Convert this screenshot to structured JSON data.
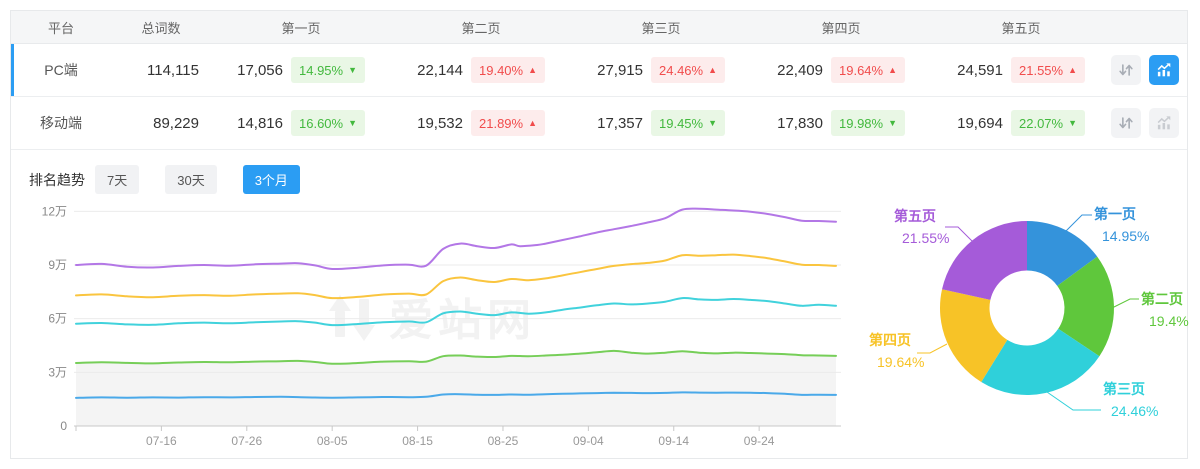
{
  "table": {
    "headers": [
      "平台",
      "总词数",
      "第一页",
      "第二页",
      "第三页",
      "第四页",
      "第五页"
    ],
    "rows": [
      {
        "platform": "PC端",
        "total": "114,115",
        "selected": true,
        "chart_active": true,
        "pages": [
          {
            "count": "17,056",
            "pct": "14.95%",
            "dir": "down"
          },
          {
            "count": "22,144",
            "pct": "19.40%",
            "dir": "up"
          },
          {
            "count": "27,915",
            "pct": "24.46%",
            "dir": "up"
          },
          {
            "count": "22,409",
            "pct": "19.64%",
            "dir": "up"
          },
          {
            "count": "24,591",
            "pct": "21.55%",
            "dir": "up"
          }
        ]
      },
      {
        "platform": "移动端",
        "total": "89,229",
        "selected": false,
        "chart_active": false,
        "pages": [
          {
            "count": "14,816",
            "pct": "16.60%",
            "dir": "down"
          },
          {
            "count": "19,532",
            "pct": "21.89%",
            "dir": "up"
          },
          {
            "count": "17,357",
            "pct": "19.45%",
            "dir": "down"
          },
          {
            "count": "17,830",
            "pct": "19.98%",
            "dir": "down"
          },
          {
            "count": "19,694",
            "pct": "22.07%",
            "dir": "down"
          }
        ]
      }
    ]
  },
  "glyphs": {
    "up": "▲",
    "down": "▼"
  },
  "icons": {
    "sort": "sort-arrows-icon",
    "chart": "trend-chart-icon"
  },
  "trend": {
    "label": "排名趋势",
    "tabs": [
      {
        "label": "7天",
        "active": false
      },
      {
        "label": "30天",
        "active": false
      },
      {
        "label": "3个月",
        "active": true
      }
    ]
  },
  "watermark": "爱站网",
  "colors": {
    "accent_blue": "#2b9df3",
    "badge_up_bg": "#fdecec",
    "badge_up_fg": "#f14c4c",
    "badge_down_bg": "#e9f7e5",
    "badge_down_fg": "#43b93e",
    "grid_line": "#ebebeb",
    "axis_line": "#c8c8c8",
    "area_fill": "#f4f4f4",
    "watermark_fill": "#f2f2f2"
  },
  "chart_data": [
    {
      "type": "line",
      "title": "排名趋势 3个月",
      "x_tick_labels": [
        "07-16",
        "07-26",
        "08-05",
        "08-15",
        "08-25",
        "09-04",
        "09-14",
        "09-24"
      ],
      "x_tick_days": [
        10,
        20,
        30,
        40,
        50,
        60,
        70,
        80
      ],
      "x_range_days": [
        0,
        89
      ],
      "y_tick_labels": [
        "0",
        "3万",
        "6万",
        "9万",
        "12万"
      ],
      "y_tick_values": [
        0,
        3,
        6,
        9,
        12
      ],
      "y_unit": "万",
      "ylim": [
        0,
        13
      ],
      "grid": true,
      "legend": "none",
      "area_series": "第二页",
      "series": [
        {
          "name": "第五页",
          "color": "#b377e6",
          "points": [
            [
              0,
              9.0
            ],
            [
              3,
              9.06
            ],
            [
              6,
              8.9
            ],
            [
              9,
              8.86
            ],
            [
              12,
              8.95
            ],
            [
              15,
              9.0
            ],
            [
              18,
              8.96
            ],
            [
              21,
              9.04
            ],
            [
              24,
              9.08
            ],
            [
              26,
              9.1
            ],
            [
              28,
              8.98
            ],
            [
              30,
              8.78
            ],
            [
              33,
              8.85
            ],
            [
              36,
              8.98
            ],
            [
              39,
              9.02
            ],
            [
              41,
              8.96
            ],
            [
              43,
              9.9
            ],
            [
              45,
              10.2
            ],
            [
              47,
              10.05
            ],
            [
              49,
              9.95
            ],
            [
              51,
              10.15
            ],
            [
              52,
              10.05
            ],
            [
              54,
              10.12
            ],
            [
              55,
              10.2
            ],
            [
              57,
              10.4
            ],
            [
              59,
              10.6
            ],
            [
              61,
              10.82
            ],
            [
              63,
              11.0
            ],
            [
              65,
              11.18
            ],
            [
              67,
              11.38
            ],
            [
              69,
              11.62
            ],
            [
              71,
              12.1
            ],
            [
              73,
              12.15
            ],
            [
              75,
              12.1
            ],
            [
              77,
              12.05
            ],
            [
              79,
              11.98
            ],
            [
              81,
              11.85
            ],
            [
              83,
              11.68
            ],
            [
              85,
              11.48
            ],
            [
              87,
              11.46
            ],
            [
              89,
              11.42
            ]
          ]
        },
        {
          "name": "第四页",
          "color": "#fac53f",
          "points": [
            [
              0,
              7.3
            ],
            [
              3,
              7.36
            ],
            [
              6,
              7.25
            ],
            [
              9,
              7.2
            ],
            [
              12,
              7.28
            ],
            [
              15,
              7.32
            ],
            [
              18,
              7.28
            ],
            [
              21,
              7.36
            ],
            [
              24,
              7.4
            ],
            [
              26,
              7.42
            ],
            [
              28,
              7.32
            ],
            [
              30,
              7.15
            ],
            [
              33,
              7.22
            ],
            [
              36,
              7.35
            ],
            [
              39,
              7.4
            ],
            [
              41,
              7.35
            ],
            [
              43,
              8.1
            ],
            [
              45,
              8.3
            ],
            [
              47,
              8.15
            ],
            [
              49,
              8.05
            ],
            [
              51,
              8.22
            ],
            [
              53,
              8.15
            ],
            [
              55,
              8.25
            ],
            [
              57,
              8.42
            ],
            [
              59,
              8.6
            ],
            [
              61,
              8.78
            ],
            [
              63,
              8.95
            ],
            [
              65,
              9.05
            ],
            [
              67,
              9.12
            ],
            [
              69,
              9.25
            ],
            [
              71,
              9.55
            ],
            [
              73,
              9.52
            ],
            [
              75,
              9.55
            ],
            [
              77,
              9.58
            ],
            [
              79,
              9.5
            ],
            [
              81,
              9.38
            ],
            [
              83,
              9.2
            ],
            [
              85,
              9.02
            ],
            [
              87,
              9.0
            ],
            [
              89,
              8.95
            ]
          ]
        },
        {
          "name": "第三页",
          "color": "#41d2dc",
          "points": [
            [
              0,
              5.72
            ],
            [
              3,
              5.76
            ],
            [
              6,
              5.68
            ],
            [
              9,
              5.66
            ],
            [
              12,
              5.74
            ],
            [
              15,
              5.78
            ],
            [
              18,
              5.74
            ],
            [
              21,
              5.8
            ],
            [
              24,
              5.84
            ],
            [
              26,
              5.86
            ],
            [
              28,
              5.78
            ],
            [
              30,
              5.64
            ],
            [
              33,
              5.7
            ],
            [
              36,
              5.8
            ],
            [
              39,
              5.84
            ],
            [
              41,
              5.8
            ],
            [
              43,
              6.3
            ],
            [
              45,
              6.4
            ],
            [
              47,
              6.28
            ],
            [
              49,
              6.2
            ],
            [
              51,
              6.35
            ],
            [
              53,
              6.28
            ],
            [
              55,
              6.35
            ],
            [
              57,
              6.5
            ],
            [
              59,
              6.62
            ],
            [
              61,
              6.75
            ],
            [
              63,
              6.85
            ],
            [
              65,
              6.8
            ],
            [
              67,
              6.85
            ],
            [
              69,
              6.95
            ],
            [
              71,
              7.15
            ],
            [
              73,
              7.08
            ],
            [
              75,
              7.05
            ],
            [
              77,
              7.1
            ],
            [
              79,
              7.05
            ],
            [
              81,
              6.98
            ],
            [
              83,
              6.85
            ],
            [
              85,
              6.72
            ],
            [
              87,
              6.78
            ],
            [
              89,
              6.72
            ]
          ]
        },
        {
          "name": "第二页",
          "color": "#76ce58",
          "points": [
            [
              0,
              3.52
            ],
            [
              3,
              3.56
            ],
            [
              6,
              3.53
            ],
            [
              9,
              3.5
            ],
            [
              12,
              3.55
            ],
            [
              15,
              3.58
            ],
            [
              18,
              3.56
            ],
            [
              21,
              3.6
            ],
            [
              24,
              3.62
            ],
            [
              26,
              3.64
            ],
            [
              28,
              3.58
            ],
            [
              30,
              3.48
            ],
            [
              33,
              3.52
            ],
            [
              36,
              3.6
            ],
            [
              39,
              3.62
            ],
            [
              41,
              3.6
            ],
            [
              43,
              3.9
            ],
            [
              45,
              3.94
            ],
            [
              47,
              3.88
            ],
            [
              49,
              3.86
            ],
            [
              51,
              3.92
            ],
            [
              53,
              3.9
            ],
            [
              55,
              3.94
            ],
            [
              57,
              3.98
            ],
            [
              59,
              4.05
            ],
            [
              61,
              4.12
            ],
            [
              63,
              4.2
            ],
            [
              65,
              4.1
            ],
            [
              67,
              4.05
            ],
            [
              69,
              4.1
            ],
            [
              71,
              4.18
            ],
            [
              73,
              4.1
            ],
            [
              75,
              4.06
            ],
            [
              77,
              4.1
            ],
            [
              79,
              4.08
            ],
            [
              81,
              4.05
            ],
            [
              83,
              4.02
            ],
            [
              85,
              3.96
            ],
            [
              87,
              3.94
            ],
            [
              89,
              3.92
            ]
          ]
        },
        {
          "name": "第一页",
          "color": "#4aa9e9",
          "points": [
            [
              0,
              1.57
            ],
            [
              3,
              1.6
            ],
            [
              6,
              1.58
            ],
            [
              9,
              1.6
            ],
            [
              12,
              1.59
            ],
            [
              15,
              1.61
            ],
            [
              18,
              1.6
            ],
            [
              21,
              1.62
            ],
            [
              24,
              1.63
            ],
            [
              27,
              1.6
            ],
            [
              30,
              1.58
            ],
            [
              33,
              1.6
            ],
            [
              36,
              1.62
            ],
            [
              39,
              1.61
            ],
            [
              41,
              1.63
            ],
            [
              43,
              1.76
            ],
            [
              45,
              1.78
            ],
            [
              47,
              1.75
            ],
            [
              49,
              1.74
            ],
            [
              51,
              1.76
            ],
            [
              53,
              1.75
            ],
            [
              55,
              1.78
            ],
            [
              57,
              1.8
            ],
            [
              59,
              1.82
            ],
            [
              61,
              1.84
            ],
            [
              63,
              1.86
            ],
            [
              65,
              1.85
            ],
            [
              67,
              1.84
            ],
            [
              69,
              1.85
            ],
            [
              71,
              1.88
            ],
            [
              73,
              1.87
            ],
            [
              75,
              1.86
            ],
            [
              77,
              1.87
            ],
            [
              79,
              1.86
            ],
            [
              81,
              1.84
            ],
            [
              83,
              1.8
            ],
            [
              85,
              1.74
            ],
            [
              87,
              1.75
            ],
            [
              89,
              1.74
            ]
          ]
        }
      ]
    },
    {
      "type": "donut",
      "series": [
        {
          "name": "第一页",
          "value": 14.95,
          "pct_label": "14.95%",
          "color": "#3493db"
        },
        {
          "name": "第二页",
          "value": 19.4,
          "pct_label": "19.4%",
          "color": "#5fc73c"
        },
        {
          "name": "第三页",
          "value": 24.46,
          "pct_label": "24.46%",
          "color": "#2fd0da"
        },
        {
          "name": "第四页",
          "value": 19.64,
          "pct_label": "19.64%",
          "color": "#f7c327"
        },
        {
          "name": "第五页",
          "value": 21.55,
          "pct_label": "21.55%",
          "color": "#a55bd9"
        }
      ]
    }
  ]
}
